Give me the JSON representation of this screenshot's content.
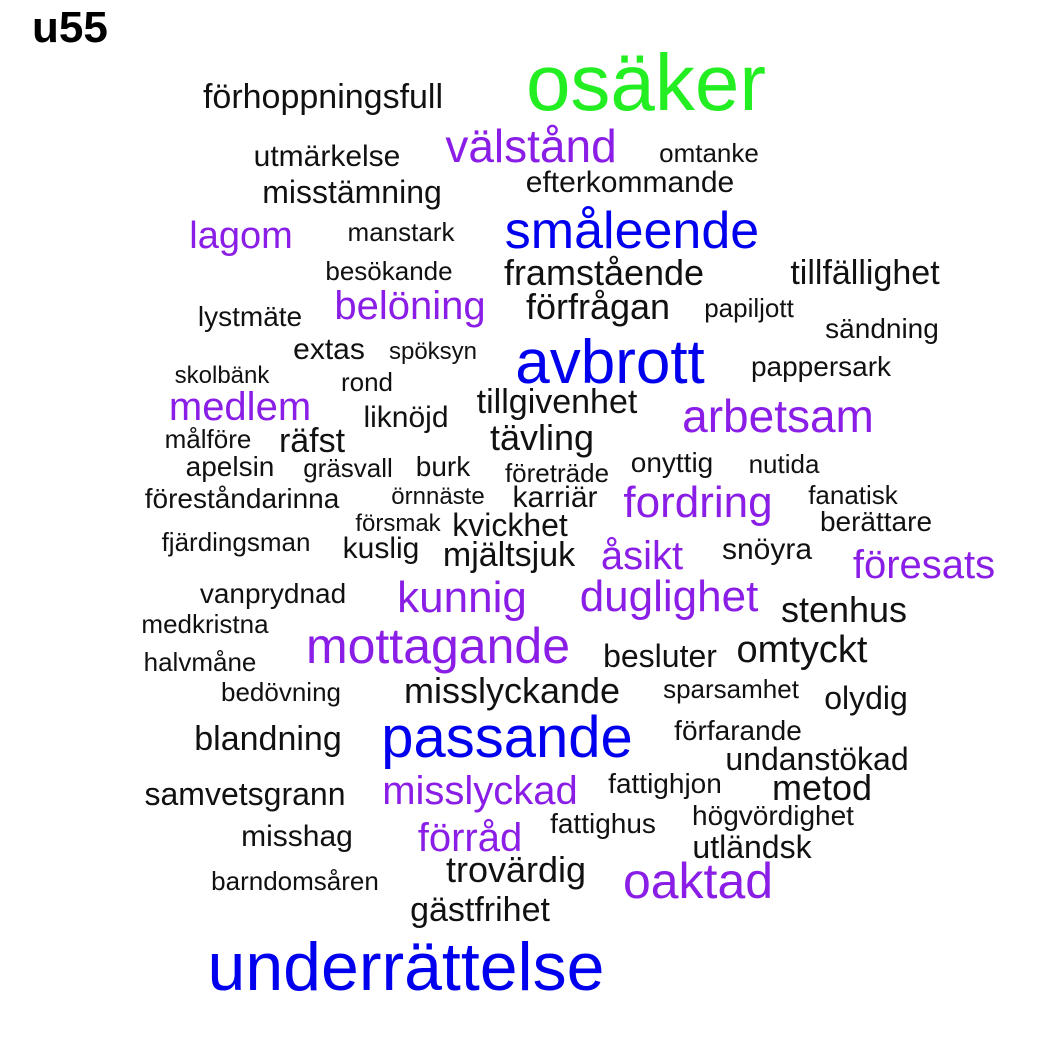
{
  "title": "u55",
  "colors": {
    "green": "#22ee22",
    "blue": "#0000ee",
    "purple": "#8a1ee6",
    "black": "#111111"
  },
  "words": [
    {
      "text": "osäker",
      "color": "green"
    },
    {
      "text": "förhoppningsfull",
      "color": "black"
    },
    {
      "text": "välstånd",
      "color": "purple"
    },
    {
      "text": "omtanke",
      "color": "black"
    },
    {
      "text": "utmärkelse",
      "color": "black"
    },
    {
      "text": "efterkommande",
      "color": "black"
    },
    {
      "text": "misstämning",
      "color": "black"
    },
    {
      "text": "småleende",
      "color": "blue"
    },
    {
      "text": "lagom",
      "color": "purple"
    },
    {
      "text": "manstark",
      "color": "black"
    },
    {
      "text": "besökande",
      "color": "black"
    },
    {
      "text": "framstående",
      "color": "black"
    },
    {
      "text": "tillfällighet",
      "color": "black"
    },
    {
      "text": "belöning",
      "color": "purple"
    },
    {
      "text": "förfrågan",
      "color": "black"
    },
    {
      "text": "papiljott",
      "color": "black"
    },
    {
      "text": "lystmäte",
      "color": "black"
    },
    {
      "text": "sändning",
      "color": "black"
    },
    {
      "text": "extas",
      "color": "black"
    },
    {
      "text": "spöksyn",
      "color": "black"
    },
    {
      "text": "avbrott",
      "color": "blue"
    },
    {
      "text": "pappersark",
      "color": "black"
    },
    {
      "text": "skolbänk",
      "color": "black"
    },
    {
      "text": "rond",
      "color": "black"
    },
    {
      "text": "tillgivenhet",
      "color": "black"
    },
    {
      "text": "medlem",
      "color": "purple"
    },
    {
      "text": "liknöjd",
      "color": "black"
    },
    {
      "text": "arbetsam",
      "color": "purple"
    },
    {
      "text": "tävling",
      "color": "black"
    },
    {
      "text": "målföre",
      "color": "black"
    },
    {
      "text": "räfst",
      "color": "black"
    },
    {
      "text": "apelsin",
      "color": "black"
    },
    {
      "text": "gräsvall",
      "color": "black"
    },
    {
      "text": "burk",
      "color": "black"
    },
    {
      "text": "företräde",
      "color": "black"
    },
    {
      "text": "onyttig",
      "color": "black"
    },
    {
      "text": "nutida",
      "color": "black"
    },
    {
      "text": "föreståndarinna",
      "color": "black"
    },
    {
      "text": "örnnäste",
      "color": "black"
    },
    {
      "text": "karriär",
      "color": "black"
    },
    {
      "text": "fordring",
      "color": "purple"
    },
    {
      "text": "fanatisk",
      "color": "black"
    },
    {
      "text": "försmak",
      "color": "black"
    },
    {
      "text": "kvickhet",
      "color": "black"
    },
    {
      "text": "berättare",
      "color": "black"
    },
    {
      "text": "fjärdingsman",
      "color": "black"
    },
    {
      "text": "kuslig",
      "color": "black"
    },
    {
      "text": "mjältsjuk",
      "color": "black"
    },
    {
      "text": "åsikt",
      "color": "purple"
    },
    {
      "text": "snöyra",
      "color": "black"
    },
    {
      "text": "föresats",
      "color": "purple"
    },
    {
      "text": "vanprydnad",
      "color": "black"
    },
    {
      "text": "kunnig",
      "color": "purple"
    },
    {
      "text": "duglighet",
      "color": "purple"
    },
    {
      "text": "stenhus",
      "color": "black"
    },
    {
      "text": "medkristna",
      "color": "black"
    },
    {
      "text": "mottagande",
      "color": "purple"
    },
    {
      "text": "omtyckt",
      "color": "black"
    },
    {
      "text": "besluter",
      "color": "black"
    },
    {
      "text": "halvmåne",
      "color": "black"
    },
    {
      "text": "sparsamhet",
      "color": "black"
    },
    {
      "text": "bedövning",
      "color": "black"
    },
    {
      "text": "misslyckande",
      "color": "black"
    },
    {
      "text": "olydig",
      "color": "black"
    },
    {
      "text": "förfarande",
      "color": "black"
    },
    {
      "text": "blandning",
      "color": "black"
    },
    {
      "text": "passande",
      "color": "blue"
    },
    {
      "text": "undanstökad",
      "color": "black"
    },
    {
      "text": "fattighjon",
      "color": "black"
    },
    {
      "text": "metod",
      "color": "black"
    },
    {
      "text": "samvetsgrann",
      "color": "black"
    },
    {
      "text": "misslyckad",
      "color": "purple"
    },
    {
      "text": "högvördighet",
      "color": "black"
    },
    {
      "text": "fattighus",
      "color": "black"
    },
    {
      "text": "misshag",
      "color": "black"
    },
    {
      "text": "förråd",
      "color": "purple"
    },
    {
      "text": "utländsk",
      "color": "black"
    },
    {
      "text": "trovärdig",
      "color": "black"
    },
    {
      "text": "oaktad",
      "color": "purple"
    },
    {
      "text": "barndomsåren",
      "color": "black"
    },
    {
      "text": "gästfrihet",
      "color": "black"
    },
    {
      "text": "underrättelse",
      "color": "blue"
    }
  ]
}
